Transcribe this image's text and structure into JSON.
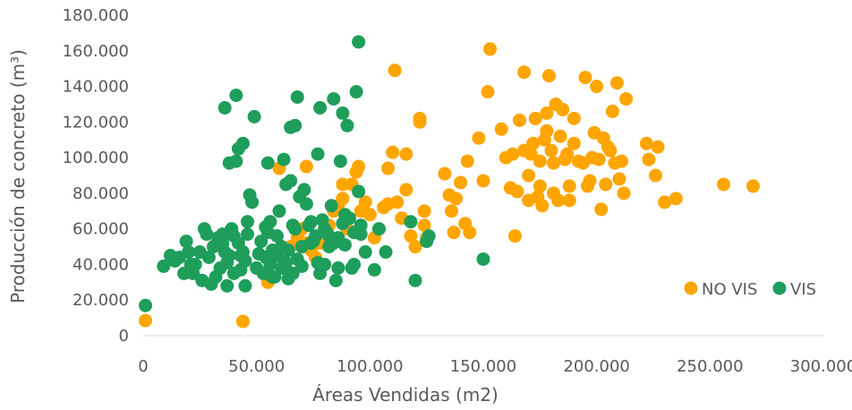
{
  "chart_data": {
    "type": "scatter",
    "xlabel": "Áreas Vendidas (m2)",
    "ylabel": "Producción de concreto (m³)",
    "xlim": [
      0,
      300000
    ],
    "ylim": [
      0,
      180000
    ],
    "x_ticks": [
      "0",
      "50.000",
      "100.000",
      "150.000",
      "200.000",
      "250.000",
      "300.000"
    ],
    "y_ticks": [
      "0",
      "20.000",
      "40.000",
      "60.000",
      "80.000",
      "100.000",
      "120.000",
      "140.000",
      "160.000",
      "180.000"
    ],
    "grid": false,
    "legend_position": "right",
    "series": [
      {
        "name": "NO VIS",
        "color": "#FFA500",
        "points": [
          [
            1000,
            8500
          ],
          [
            44000,
            8000
          ],
          [
            55000,
            30000
          ],
          [
            56000,
            43000
          ],
          [
            60000,
            45000
          ],
          [
            62000,
            47000
          ],
          [
            65000,
            50000
          ],
          [
            68000,
            55000
          ],
          [
            70000,
            60000
          ],
          [
            72000,
            52000
          ],
          [
            74000,
            48000
          ],
          [
            76000,
            44000
          ],
          [
            78000,
            52000
          ],
          [
            80000,
            58000
          ],
          [
            82000,
            62000
          ],
          [
            84000,
            70000
          ],
          [
            86000,
            73000
          ],
          [
            88000,
            77000
          ],
          [
            90000,
            60000
          ],
          [
            92000,
            85000
          ],
          [
            94000,
            92000
          ],
          [
            95000,
            95000
          ],
          [
            96000,
            70000
          ],
          [
            98000,
            75000
          ],
          [
            100000,
            68000
          ],
          [
            102000,
            55000
          ],
          [
            104000,
            60000
          ],
          [
            106000,
            72000
          ],
          [
            108000,
            74000
          ],
          [
            110000,
            103000
          ],
          [
            112000,
            75000
          ],
          [
            114000,
            66000
          ],
          [
            116000,
            82000
          ],
          [
            118000,
            56000
          ],
          [
            120000,
            50000
          ],
          [
            122000,
            120000
          ],
          [
            124000,
            70000
          ],
          [
            60000,
            94000
          ],
          [
            72000,
            95000
          ],
          [
            88000,
            85000
          ],
          [
            108000,
            94000
          ],
          [
            116000,
            102000
          ],
          [
            122000,
            122000
          ],
          [
            124000,
            62000
          ],
          [
            125000,
            55000
          ],
          [
            111000,
            149000
          ],
          [
            133000,
            91000
          ],
          [
            135000,
            79000
          ],
          [
            136000,
            70000
          ],
          [
            137000,
            58000
          ],
          [
            138000,
            77000
          ],
          [
            140000,
            86000
          ],
          [
            142000,
            63000
          ],
          [
            143000,
            98000
          ],
          [
            144000,
            58000
          ],
          [
            148000,
            111000
          ],
          [
            150000,
            87000
          ],
          [
            152000,
            137000
          ],
          [
            153000,
            161000
          ],
          [
            158000,
            116000
          ],
          [
            160000,
            100000
          ],
          [
            162000,
            83000
          ],
          [
            163000,
            102000
          ],
          [
            164000,
            56000
          ],
          [
            165000,
            81000
          ],
          [
            166000,
            121000
          ],
          [
            168000,
            104000
          ],
          [
            168000,
            148000
          ],
          [
            170000,
            90000
          ],
          [
            170000,
            76000
          ],
          [
            171000,
            102000
          ],
          [
            172000,
            108000
          ],
          [
            173000,
            122000
          ],
          [
            174000,
            78000
          ],
          [
            175000,
            84000
          ],
          [
            175000,
            98000
          ],
          [
            176000,
            73000
          ],
          [
            177000,
            110000
          ],
          [
            178000,
            115000
          ],
          [
            178000,
            125000
          ],
          [
            179000,
            146000
          ],
          [
            180000,
            104000
          ],
          [
            181000,
            80000
          ],
          [
            181000,
            97000
          ],
          [
            182000,
            130000
          ],
          [
            183000,
            76000
          ],
          [
            184000,
            112000
          ],
          [
            185000,
            127000
          ],
          [
            186000,
            99000
          ],
          [
            187000,
            102000
          ],
          [
            188000,
            84000
          ],
          [
            188000,
            76000
          ],
          [
            190000,
            108000
          ],
          [
            190000,
            122000
          ],
          [
            192000,
            98000
          ],
          [
            194000,
            97000
          ],
          [
            195000,
            145000
          ],
          [
            196000,
            84000
          ],
          [
            197000,
            87000
          ],
          [
            198000,
            100000
          ],
          [
            199000,
            114000
          ],
          [
            200000,
            140000
          ],
          [
            201000,
            99000
          ],
          [
            202000,
            71000
          ],
          [
            203000,
            111000
          ],
          [
            204000,
            85000
          ],
          [
            205000,
            106000
          ],
          [
            206000,
            104000
          ],
          [
            207000,
            126000
          ],
          [
            208000,
            97000
          ],
          [
            209000,
            142000
          ],
          [
            210000,
            88000
          ],
          [
            211000,
            98000
          ],
          [
            212000,
            80000
          ],
          [
            213000,
            133000
          ],
          [
            222000,
            108000
          ],
          [
            223000,
            99000
          ],
          [
            226000,
            90000
          ],
          [
            227000,
            106000
          ],
          [
            230000,
            75000
          ],
          [
            235000,
            77000
          ],
          [
            256000,
            85000
          ],
          [
            269000,
            84000
          ]
        ]
      },
      {
        "name": "VIS",
        "color": "#1E9E5A",
        "points": [
          [
            1000,
            17000
          ],
          [
            9000,
            39000
          ],
          [
            12000,
            45000
          ],
          [
            14000,
            42000
          ],
          [
            16000,
            44000
          ],
          [
            18000,
            35000
          ],
          [
            19000,
            53000
          ],
          [
            20000,
            47000
          ],
          [
            21000,
            40000
          ],
          [
            22000,
            35000
          ],
          [
            23000,
            40000
          ],
          [
            25000,
            47000
          ],
          [
            26000,
            31000
          ],
          [
            27000,
            60000
          ],
          [
            28000,
            57000
          ],
          [
            29000,
            44000
          ],
          [
            30000,
            29000
          ],
          [
            31000,
            50000
          ],
          [
            32000,
            33000
          ],
          [
            33000,
            55000
          ],
          [
            34000,
            38000
          ],
          [
            35000,
            52000
          ],
          [
            35000,
            57000
          ],
          [
            36000,
            47000
          ],
          [
            36000,
            128000
          ],
          [
            37000,
            41000
          ],
          [
            37000,
            28000
          ],
          [
            38000,
            45000
          ],
          [
            38000,
            97000
          ],
          [
            39000,
            60000
          ],
          [
            40000,
            56000
          ],
          [
            40000,
            35000
          ],
          [
            41000,
            98000
          ],
          [
            41000,
            135000
          ],
          [
            42000,
            105000
          ],
          [
            42000,
            52000
          ],
          [
            43000,
            45000
          ],
          [
            43000,
            37000
          ],
          [
            44000,
            47000
          ],
          [
            44000,
            108000
          ],
          [
            45000,
            42000
          ],
          [
            45000,
            28000
          ],
          [
            46000,
            57000
          ],
          [
            46000,
            64000
          ],
          [
            47000,
            79000
          ],
          [
            48000,
            75000
          ],
          [
            49000,
            123000
          ],
          [
            50000,
            38000
          ],
          [
            51000,
            46000
          ],
          [
            52000,
            53000
          ],
          [
            53000,
            35000
          ],
          [
            54000,
            44000
          ],
          [
            54000,
            61000
          ],
          [
            55000,
            97000
          ],
          [
            55000,
            58000
          ],
          [
            56000,
            64000
          ],
          [
            56000,
            40000
          ],
          [
            57000,
            48000
          ],
          [
            57000,
            33000
          ],
          [
            58000,
            33000
          ],
          [
            59000,
            56000
          ],
          [
            59000,
            45000
          ],
          [
            60000,
            70000
          ],
          [
            61000,
            50000
          ],
          [
            61000,
            38000
          ],
          [
            62000,
            99000
          ],
          [
            63000,
            85000
          ],
          [
            63000,
            41000
          ],
          [
            64000,
            48000
          ],
          [
            64000,
            32000
          ],
          [
            65000,
            87000
          ],
          [
            65000,
            117000
          ],
          [
            66000,
            62000
          ],
          [
            66000,
            35000
          ],
          [
            67000,
            118000
          ],
          [
            67000,
            60000
          ],
          [
            68000,
            43000
          ],
          [
            68000,
            134000
          ],
          [
            69000,
            78000
          ],
          [
            70000,
            50000
          ],
          [
            70000,
            39000
          ],
          [
            71000,
            82000
          ],
          [
            72000,
            74000
          ],
          [
            73000,
            62000
          ],
          [
            74000,
            64000
          ],
          [
            74000,
            52000
          ],
          [
            75000,
            53000
          ],
          [
            76000,
            56000
          ],
          [
            77000,
            41000
          ],
          [
            77000,
            102000
          ],
          [
            78000,
            35000
          ],
          [
            78000,
            128000
          ],
          [
            79000,
            65000
          ],
          [
            80000,
            40000
          ],
          [
            80000,
            60000
          ],
          [
            81000,
            58000
          ],
          [
            82000,
            56000
          ],
          [
            82000,
            50000
          ],
          [
            83000,
            73000
          ],
          [
            84000,
            52000
          ],
          [
            84000,
            133000
          ],
          [
            85000,
            31000
          ],
          [
            86000,
            55000
          ],
          [
            86000,
            38000
          ],
          [
            87000,
            98000
          ],
          [
            88000,
            125000
          ],
          [
            88000,
            63000
          ],
          [
            89000,
            51000
          ],
          [
            89000,
            68000
          ],
          [
            90000,
            118000
          ],
          [
            91000,
            66000
          ],
          [
            92000,
            38000
          ],
          [
            93000,
            58000
          ],
          [
            93000,
            40000
          ],
          [
            94000,
            137000
          ],
          [
            95000,
            165000
          ],
          [
            95000,
            81000
          ],
          [
            96000,
            57000
          ],
          [
            96000,
            62000
          ],
          [
            98000,
            47000
          ],
          [
            102000,
            37000
          ],
          [
            104000,
            60000
          ],
          [
            107000,
            47000
          ],
          [
            118000,
            64000
          ],
          [
            120000,
            31000
          ],
          [
            125000,
            53000
          ],
          [
            126000,
            56000
          ],
          [
            150000,
            43000
          ]
        ]
      }
    ]
  }
}
